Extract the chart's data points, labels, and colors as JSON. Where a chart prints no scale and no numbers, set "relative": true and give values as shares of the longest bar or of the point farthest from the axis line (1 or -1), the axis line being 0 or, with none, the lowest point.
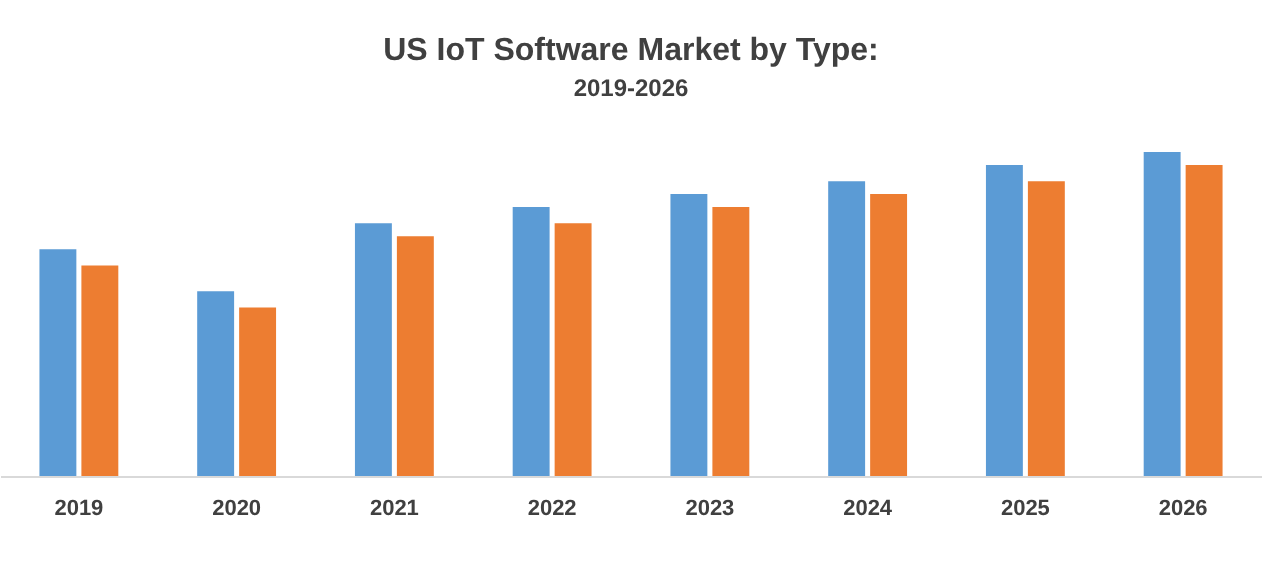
{
  "chart_data": {
    "type": "bar",
    "title": "US IoT Software Market by Type:",
    "subtitle": "2019-2026",
    "relative": true,
    "grid": false,
    "legend": false,
    "categories": [
      "2019",
      "2020",
      "2021",
      "2022",
      "2023",
      "2024",
      "2025",
      "2026"
    ],
    "series": [
      {
        "color": "#5b9bd5",
        "values": [
          0.7,
          0.57,
          0.78,
          0.83,
          0.87,
          0.91,
          0.96,
          1
        ]
      },
      {
        "color": "#ed7d31",
        "values": [
          0.65,
          0.52,
          0.74,
          0.78,
          0.83,
          0.87,
          0.91,
          0.96
        ]
      }
    ]
  }
}
